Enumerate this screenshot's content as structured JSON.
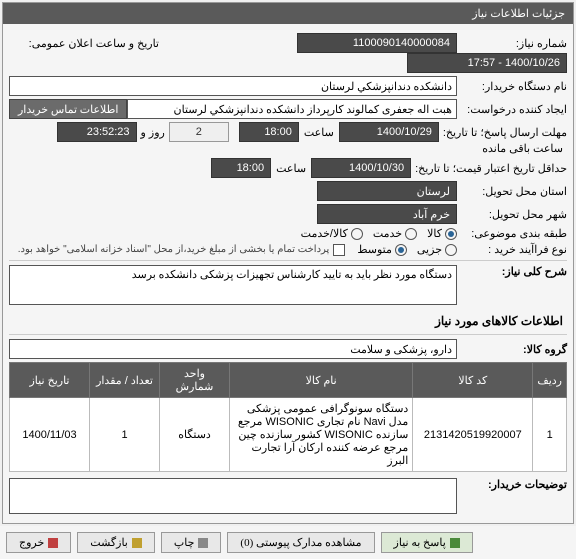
{
  "panel1_title": "جزئیات اطلاعات نیاز",
  "r1": {
    "need_no_label": "شماره نیاز:",
    "need_no": "1100090140000084",
    "pub_date_label": "تاریخ و ساعت اعلان عمومی:",
    "pub_date": "1400/10/26 - 17:57"
  },
  "r2": {
    "buyer_label": "نام دستگاه خریدار:",
    "buyer": "دانشکده دندانپزشکي لرستان"
  },
  "r3": {
    "requester_label": "ایجاد کننده درخواست:",
    "requester": "هبت اله جعفری کمالوند کارپرداز دانشکده دندانپزشکي لرستان",
    "contact_btn": "اطلاعات تماس خریدار"
  },
  "r4": {
    "deadline_label": "مهلت ارسال پاسخ؛ تا تاریخ:",
    "date": "1400/10/29",
    "time_label": "ساعت",
    "time": "18:00",
    "days": "2",
    "days_label": "روز و",
    "remain": "23:52:23",
    "remain_label": "ساعت باقی مانده"
  },
  "r5": {
    "valid_label": "حداقل تاریخ اعتبار قیمت؛ تا تاریخ:",
    "date": "1400/10/30",
    "time_label": "ساعت",
    "time": "18:00"
  },
  "r6": {
    "province_label": "استان محل تحویل:",
    "province": "لرستان"
  },
  "r7": {
    "city_label": "شهر محل تحویل:",
    "city": "خرم آباد"
  },
  "r8": {
    "cat_label": "طبقه بندی موضوعی:",
    "options": [
      {
        "label": "کالا",
        "checked": true
      },
      {
        "label": "خدمت",
        "checked": false
      },
      {
        "label": "کالا/خدمت",
        "checked": false
      }
    ]
  },
  "r9": {
    "proc_label": "نوع فراآیند خرید :",
    "options": [
      {
        "label": "جزیی",
        "checked": false
      },
      {
        "label": "متوسط",
        "checked": true
      }
    ],
    "note": "پرداخت تمام یا بخشی از مبلغ خرید،از محل \"اسناد خزانه اسلامی\" خواهد بود."
  },
  "desc": {
    "title": "شرح کلی نیاز:",
    "text": "دستگاه مورد نظر باید به تایید کارشناس تجهیزات پزشکی دانشکده برسد"
  },
  "goods_header": "اطلاعات کالاهای مورد نیاز",
  "group": {
    "label": "گروه کالا:",
    "value": "دارو، پزشکی و سلامت"
  },
  "table": {
    "columns": [
      "ردیف",
      "کد کالا",
      "نام کالا",
      "واحد شمارش",
      "تعداد / مقدار",
      "تاریخ نیاز"
    ],
    "rows": [
      [
        "1",
        "2131420519920007",
        "دستگاه سونوگرافی عمومی پزشکی مدل Navi نام تجاری WISONIC مرجع سازنده WISONIC کشور سازنده چین مرجع عرضه کننده ارکان آرا تجارت البرز",
        "دستگاه",
        "1",
        "1400/11/03"
      ]
    ]
  },
  "buyer_notes_label": "توضیحات خریدار:",
  "footer": {
    "respond": "پاسخ به نیاز",
    "attach": "مشاهده مدارک پیوستی (0)",
    "print": "چاپ",
    "back": "بازگشت",
    "exit": "خروج"
  }
}
